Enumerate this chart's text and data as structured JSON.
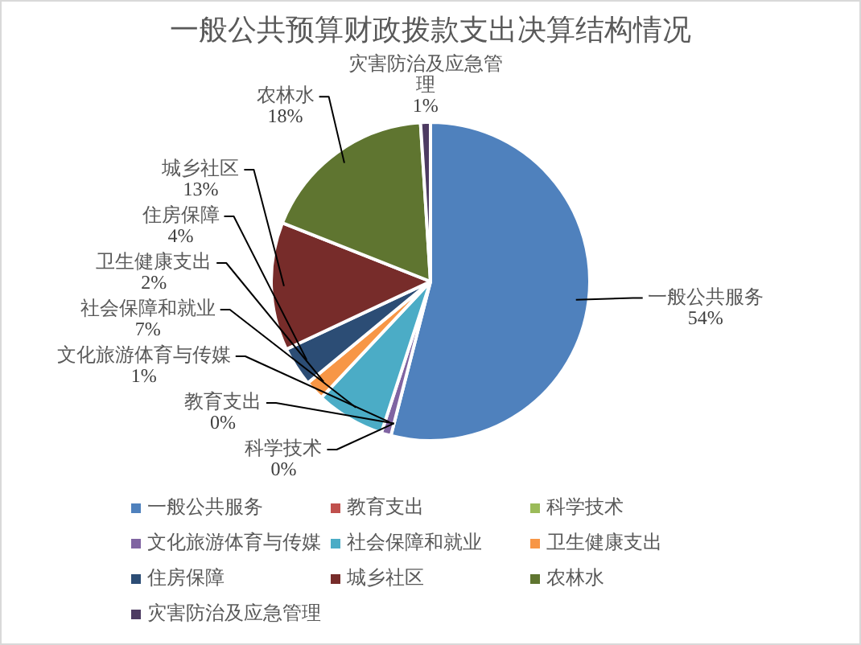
{
  "chart_data": {
    "type": "pie",
    "title": "一般公共预算财政拨款支出决算结构情况",
    "categories": [
      "一般公共服务",
      "教育支出",
      "科学技术",
      "文化旅游体育与传媒",
      "社会保障和就业",
      "卫生健康支出",
      "住房保障",
      "城乡社区",
      "农林水",
      "灾害防治及应急管理"
    ],
    "values": [
      54,
      0,
      0,
      1,
      7,
      2,
      4,
      13,
      18,
      1
    ],
    "value_labels": [
      "54%",
      "0%",
      "0%",
      "1%",
      "7%",
      "2%",
      "4%",
      "13%",
      "18%",
      "1%"
    ],
    "colors": [
      "#4f81bd",
      "#c0504d",
      "#9bbb59",
      "#8064a2",
      "#4bacc6",
      "#f79646",
      "#2c4d75",
      "#772c2a",
      "#5f7530",
      "#4d3b62"
    ],
    "legend": "bottom"
  }
}
